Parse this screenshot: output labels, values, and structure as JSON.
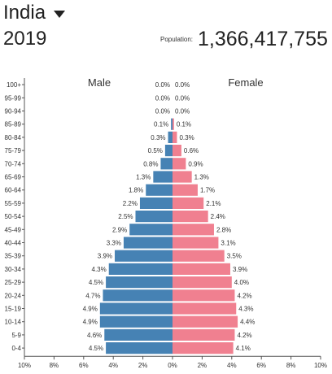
{
  "header": {
    "country": "India",
    "year": "2019",
    "population_label": "Population:",
    "population_value": "1,366,417,755"
  },
  "colors": {
    "male": "#4682b4",
    "female": "#f08090"
  },
  "chart_data": {
    "type": "bar",
    "orientation": "horizontal-pyramid",
    "categories": [
      "100+",
      "95-99",
      "90-94",
      "85-89",
      "80-84",
      "75-79",
      "70-74",
      "65-69",
      "60-64",
      "55-59",
      "50-54",
      "45-49",
      "40-44",
      "35-39",
      "30-34",
      "25-29",
      "20-24",
      "15-19",
      "10-14",
      "5-9",
      "0-4"
    ],
    "series": [
      {
        "name": "Male",
        "labels": [
          "0.0%",
          "0.0%",
          "0.0%",
          "0.1%",
          "0.3%",
          "0.5%",
          "0.8%",
          "1.3%",
          "1.8%",
          "2.2%",
          "2.5%",
          "2.9%",
          "3.3%",
          "3.9%",
          "4.3%",
          "4.5%",
          "4.7%",
          "4.9%",
          "4.9%",
          "4.6%",
          "4.5%"
        ],
        "values": [
          0.0,
          0.0,
          0.0,
          0.1,
          0.3,
          0.5,
          0.8,
          1.3,
          1.8,
          2.2,
          2.5,
          2.9,
          3.3,
          3.9,
          4.3,
          4.5,
          4.7,
          4.9,
          4.9,
          4.6,
          4.5
        ]
      },
      {
        "name": "Female",
        "labels": [
          "0.0%",
          "0.0%",
          "0.0%",
          "0.1%",
          "0.3%",
          "0.6%",
          "0.9%",
          "1.3%",
          "1.7%",
          "2.1%",
          "2.4%",
          "2.8%",
          "3.1%",
          "3.5%",
          "3.9%",
          "4.0%",
          "4.2%",
          "4.3%",
          "4.4%",
          "4.2%",
          "4.1%"
        ],
        "values": [
          0.0,
          0.0,
          0.0,
          0.1,
          0.3,
          0.6,
          0.9,
          1.3,
          1.7,
          2.1,
          2.4,
          2.8,
          3.1,
          3.5,
          3.9,
          4.0,
          4.2,
          4.3,
          4.4,
          4.2,
          4.1
        ]
      }
    ],
    "xticks": [
      "10%",
      "8%",
      "6%",
      "4%",
      "2%",
      "0%",
      "2%",
      "4%",
      "6%",
      "8%",
      "10%"
    ],
    "xlim": [
      -10,
      10
    ]
  }
}
